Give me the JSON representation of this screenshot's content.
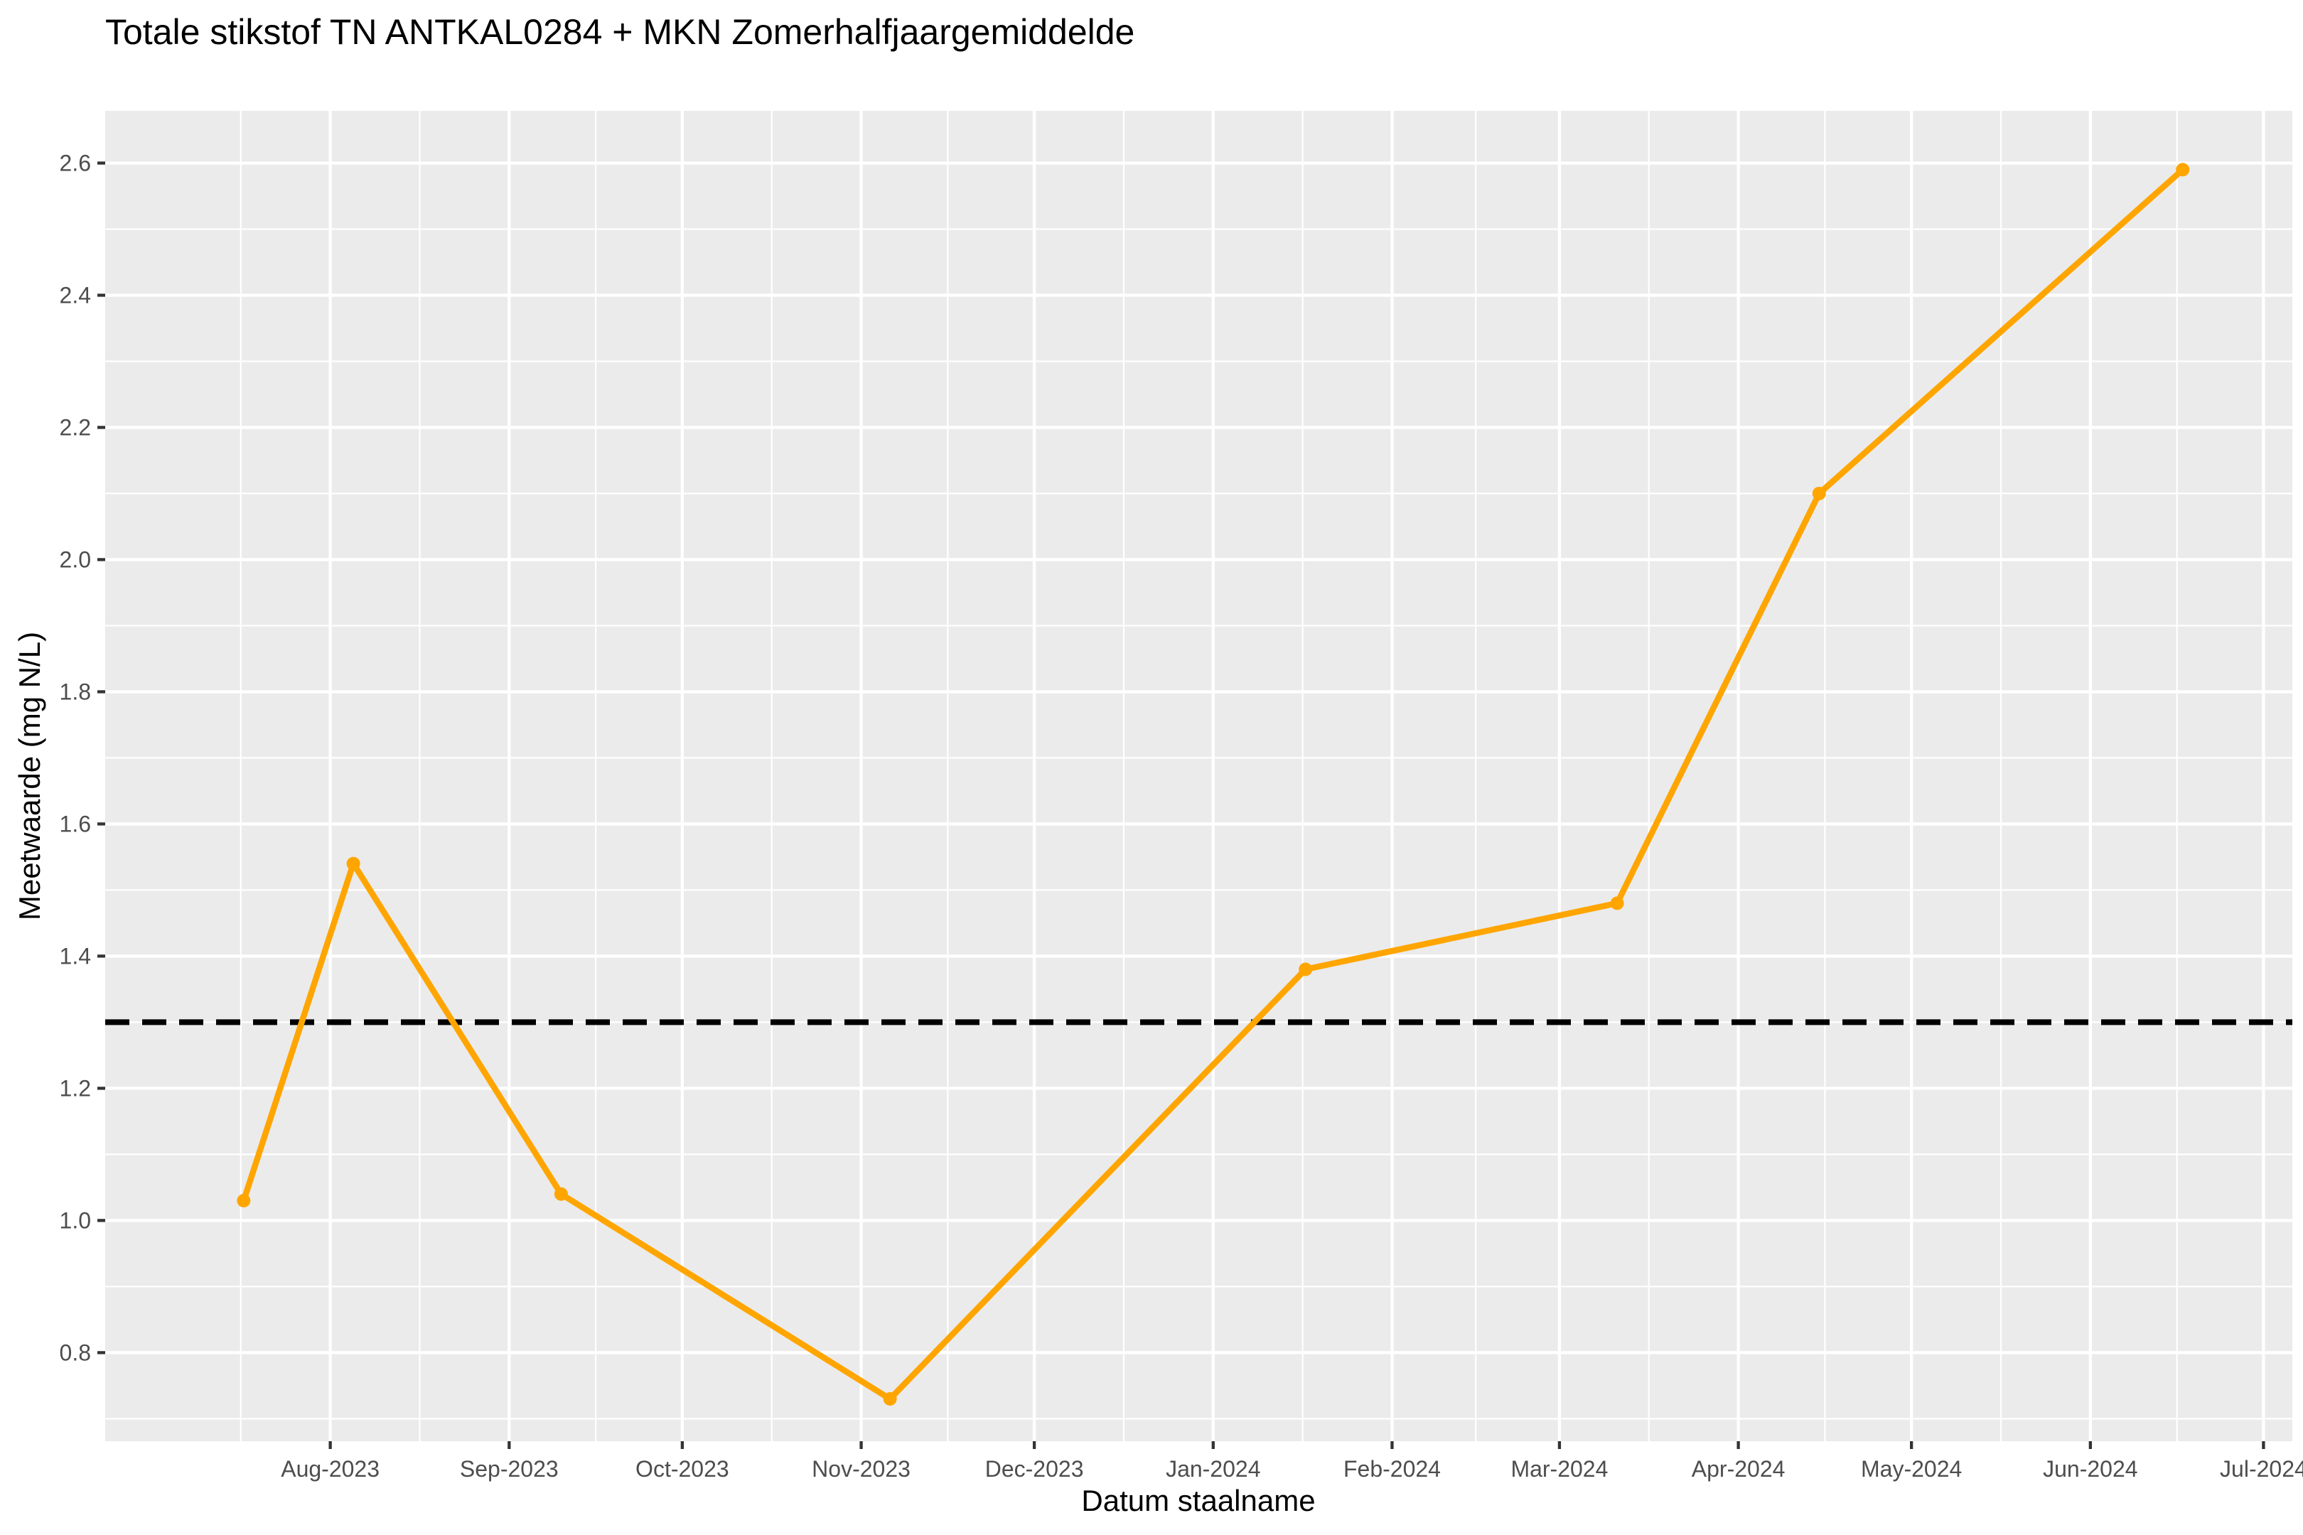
{
  "chart_data": {
    "type": "line",
    "title": "Totale stikstof TN ANTKAL0284 + MKN Zomerhalfjaargemiddelde",
    "xlabel": "Datum staalname",
    "ylabel": "Meetwaarde (mg N/L)",
    "x_ticks": [
      "2023-08-01",
      "2023-09-01",
      "2023-10-01",
      "2023-11-01",
      "2023-12-01",
      "2024-01-01",
      "2024-02-01",
      "2024-03-01",
      "2024-04-01",
      "2024-05-01",
      "2024-06-01",
      "2024-07-01"
    ],
    "x_tick_labels": [
      "Aug-2023",
      "Sep-2023",
      "Oct-2023",
      "Nov-2023",
      "Dec-2023",
      "Jan-2024",
      "Feb-2024",
      "Mar-2024",
      "Apr-2024",
      "May-2024",
      "Jun-2024",
      "Jul-2024"
    ],
    "xlim": [
      "2023-06-23",
      "2024-07-06"
    ],
    "ylim": [
      0.666,
      2.679
    ],
    "y_ticks": [
      0.8,
      1.0,
      1.2,
      1.4,
      1.6,
      1.8,
      2.0,
      2.2,
      2.4,
      2.6
    ],
    "y_tick_labels": [
      "0.8",
      "1.0",
      "1.2",
      "1.4",
      "1.6",
      "1.8",
      "2.0",
      "2.2",
      "2.4",
      "2.6"
    ],
    "grid": true,
    "series": [
      {
        "color": "#FFA500",
        "x": [
          "2023-07-17",
          "2023-08-05",
          "2023-09-10",
          "2023-11-06",
          "2024-01-17",
          "2024-03-11",
          "2024-04-15",
          "2024-06-17"
        ],
        "y": [
          1.03,
          1.54,
          1.04,
          0.73,
          1.38,
          1.48,
          2.1,
          2.59
        ]
      }
    ],
    "reference_line": {
      "y": 1.3,
      "style": "dashed",
      "color": "#000000"
    },
    "colors": {
      "panel_background": "#EBEBEB",
      "grid": "#FFFFFF",
      "series": "#FFA500",
      "reference": "#000000"
    }
  }
}
